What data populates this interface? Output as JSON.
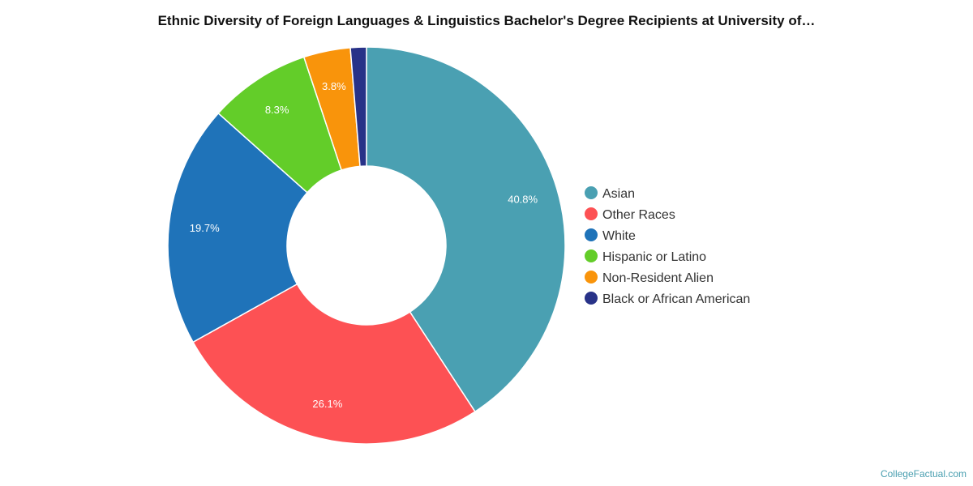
{
  "chart_data": {
    "type": "pie",
    "title": "Ethnic Diversity of Foreign Languages & Linguistics Bachelor's Degree Recipients at University of…",
    "donut": true,
    "legend_position": "right",
    "slices": [
      {
        "name": "Asian",
        "value": 40.8,
        "label": "40.8%",
        "color": "#4aa0b2"
      },
      {
        "name": "Other Races",
        "value": 26.1,
        "label": "26.1%",
        "color": "#fd5154"
      },
      {
        "name": "White",
        "value": 19.7,
        "label": "19.7%",
        "color": "#1f73b9"
      },
      {
        "name": "Hispanic or Latino",
        "value": 8.3,
        "label": "8.3%",
        "color": "#63cd29"
      },
      {
        "name": "Non-Resident Alien",
        "value": 3.8,
        "label": "3.8%",
        "color": "#f9940b"
      },
      {
        "name": "Black or African American",
        "value": 1.3,
        "label": "",
        "color": "#283288"
      }
    ]
  },
  "footer": {
    "watermark": "CollegeFactual.com"
  }
}
